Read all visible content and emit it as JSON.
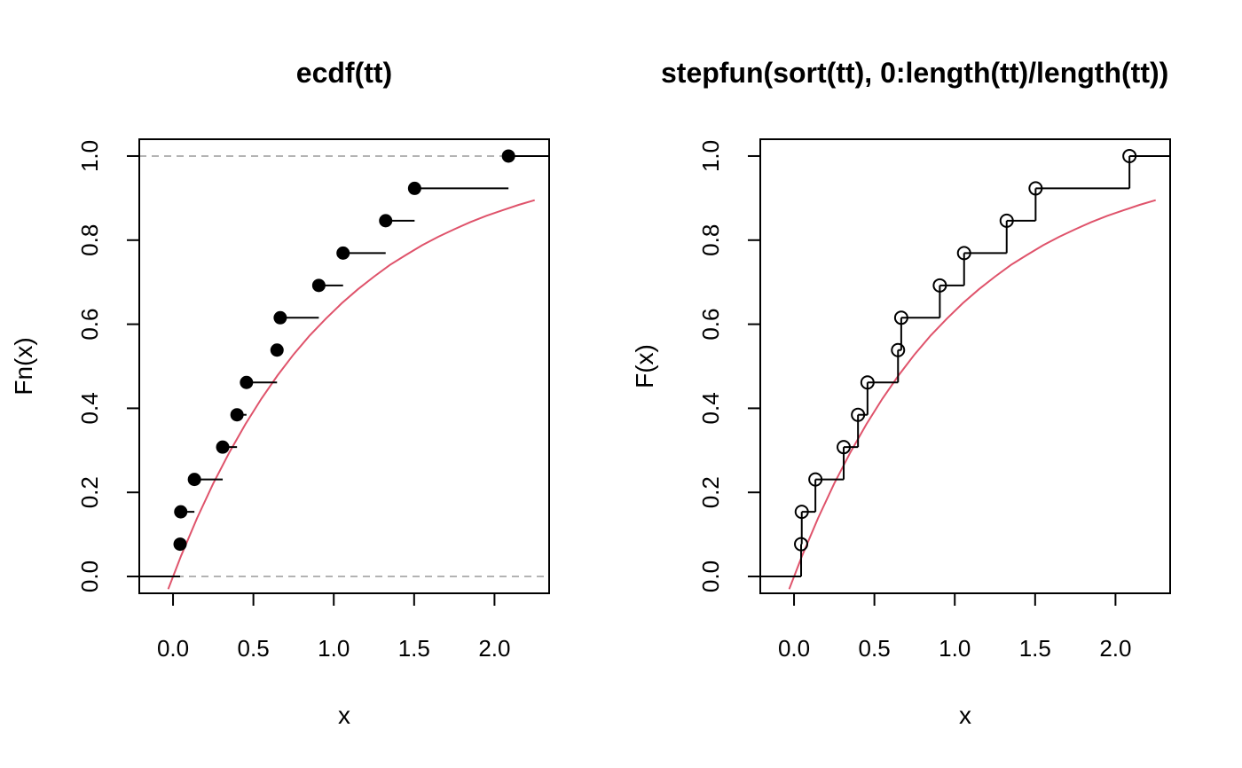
{
  "chart_data": [
    {
      "type": "line",
      "title": "ecdf(tt)",
      "xlabel": "x",
      "ylabel": "Fn(x)",
      "xlim": [
        -0.21,
        2.34
      ],
      "ylim": [
        -0.04,
        1.04
      ],
      "xticks": [
        "0.0",
        "0.5",
        "1.0",
        "1.5",
        "2.0"
      ],
      "yticks": [
        "0.0",
        "0.2",
        "0.4",
        "0.6",
        "0.8",
        "1.0"
      ],
      "xtick_values": [
        0,
        0.5,
        1,
        1.5,
        2
      ],
      "ytick_values": [
        0,
        0.2,
        0.4,
        0.6,
        0.8,
        1
      ],
      "point_style": "filled",
      "reference_lines": [
        0,
        1
      ],
      "step": {
        "knots": [
          0.044,
          0.048,
          0.133,
          0.309,
          0.398,
          0.457,
          0.647,
          0.667,
          0.907,
          1.058,
          1.323,
          1.503,
          2.087
        ],
        "y": [
          0,
          0.0769,
          0.1538,
          0.2308,
          0.3077,
          0.3846,
          0.4615,
          0.5385,
          0.6154,
          0.6923,
          0.7692,
          0.8462,
          0.9231,
          1.0
        ]
      },
      "curve": {
        "name": "",
        "color": "#DF536B",
        "x": [
          -0.03,
          0.05,
          0.15,
          0.25,
          0.35,
          0.45,
          0.55,
          0.65,
          0.75,
          0.85,
          0.95,
          1.05,
          1.15,
          1.25,
          1.35,
          1.45,
          1.55,
          1.65,
          1.75,
          1.85,
          1.95,
          2.05,
          2.15,
          2.25
        ],
        "y": [
          -0.03,
          0.049,
          0.139,
          0.221,
          0.295,
          0.362,
          0.423,
          0.478,
          0.528,
          0.573,
          0.613,
          0.65,
          0.683,
          0.713,
          0.741,
          0.765,
          0.788,
          0.808,
          0.826,
          0.843,
          0.858,
          0.871,
          0.884,
          0.895
        ]
      }
    },
    {
      "type": "line",
      "title": "stepfun(sort(tt), 0:length(tt)/length(tt))",
      "xlabel": "x",
      "ylabel": "F(x)",
      "xlim": [
        -0.21,
        2.34
      ],
      "ylim": [
        -0.04,
        1.04
      ],
      "xticks": [
        "0.0",
        "0.5",
        "1.0",
        "1.5",
        "2.0"
      ],
      "yticks": [
        "0.0",
        "0.2",
        "0.4",
        "0.6",
        "0.8",
        "1.0"
      ],
      "xtick_values": [
        0,
        0.5,
        1,
        1.5,
        2
      ],
      "ytick_values": [
        0,
        0.2,
        0.4,
        0.6,
        0.8,
        1
      ],
      "point_style": "open",
      "reference_lines": [],
      "step": {
        "knots": [
          0.044,
          0.048,
          0.133,
          0.309,
          0.398,
          0.457,
          0.647,
          0.667,
          0.907,
          1.058,
          1.323,
          1.503,
          2.087
        ],
        "y": [
          0,
          0.0769,
          0.1538,
          0.2308,
          0.3077,
          0.3846,
          0.4615,
          0.5385,
          0.6154,
          0.6923,
          0.7692,
          0.8462,
          0.9231,
          1.0
        ]
      },
      "curve": {
        "name": "",
        "color": "#DF536B",
        "x": [
          -0.03,
          0.05,
          0.15,
          0.25,
          0.35,
          0.45,
          0.55,
          0.65,
          0.75,
          0.85,
          0.95,
          1.05,
          1.15,
          1.25,
          1.35,
          1.45,
          1.55,
          1.65,
          1.75,
          1.85,
          1.95,
          2.05,
          2.15,
          2.25
        ],
        "y": [
          -0.03,
          0.049,
          0.139,
          0.221,
          0.295,
          0.362,
          0.423,
          0.478,
          0.528,
          0.573,
          0.613,
          0.65,
          0.683,
          0.713,
          0.741,
          0.765,
          0.788,
          0.808,
          0.826,
          0.843,
          0.858,
          0.871,
          0.884,
          0.895
        ]
      }
    }
  ]
}
